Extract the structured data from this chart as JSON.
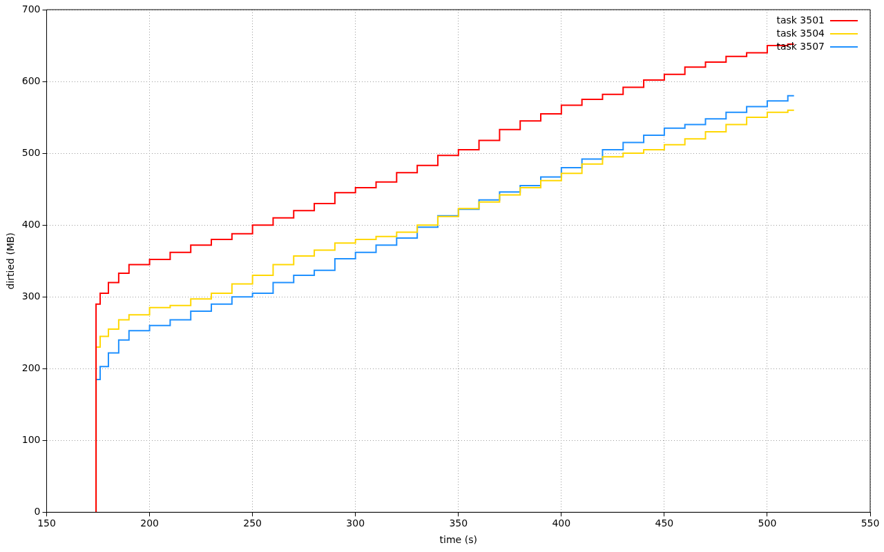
{
  "chart_data": {
    "type": "step",
    "xlabel": "time (s)",
    "ylabel": "dirtied (MB)",
    "xlim": [
      150,
      550
    ],
    "xticks": [
      150,
      200,
      250,
      300,
      350,
      400,
      450,
      500,
      550
    ],
    "ylim": [
      0,
      700
    ],
    "yticks": [
      0,
      100,
      200,
      300,
      400,
      500,
      600,
      700
    ],
    "grid": true,
    "legend": "top right",
    "marker": "none",
    "x": [
      174,
      174,
      176,
      180,
      185,
      190,
      200,
      210,
      220,
      230,
      240,
      250,
      260,
      270,
      280,
      290,
      300,
      310,
      320,
      330,
      340,
      350,
      360,
      370,
      380,
      390,
      400,
      410,
      420,
      430,
      440,
      450,
      460,
      470,
      480,
      490,
      500,
      510,
      513
    ],
    "series": [
      {
        "name": "task 3501",
        "color": "#ff0000",
        "values": [
          0,
          270,
          290,
          305,
          320,
          333,
          345,
          352,
          362,
          372,
          380,
          388,
          400,
          410,
          420,
          430,
          445,
          452,
          460,
          473,
          483,
          497,
          505,
          518,
          533,
          545,
          555,
          567,
          575,
          582,
          592,
          602,
          610,
          620,
          627,
          635,
          640,
          650,
          652
        ]
      },
      {
        "name": "task 3504",
        "color": "#ffd700",
        "values": [
          0,
          210,
          230,
          245,
          255,
          268,
          275,
          285,
          288,
          297,
          305,
          318,
          330,
          345,
          357,
          365,
          375,
          380,
          384,
          390,
          400,
          412,
          423,
          432,
          442,
          452,
          462,
          472,
          485,
          495,
          500,
          505,
          512,
          520,
          530,
          540,
          550,
          557,
          560
        ]
      },
      {
        "name": "task 3507",
        "color": "#1e90ff",
        "values": [
          0,
          160,
          185,
          203,
          222,
          240,
          253,
          260,
          268,
          280,
          290,
          300,
          305,
          320,
          330,
          337,
          353,
          362,
          372,
          382,
          397,
          413,
          422,
          435,
          446,
          455,
          467,
          480,
          492,
          505,
          515,
          525,
          535,
          540,
          548,
          557,
          565,
          573,
          580
        ]
      }
    ]
  }
}
